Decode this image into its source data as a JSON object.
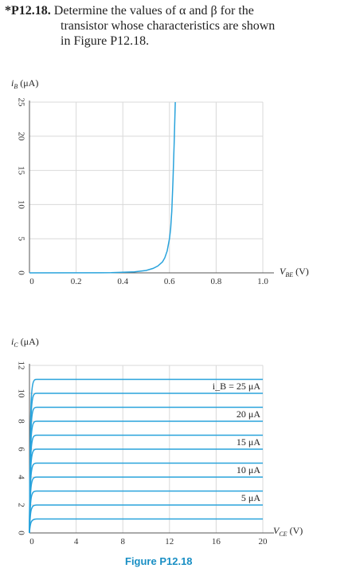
{
  "problem": {
    "number": "*P12.18.",
    "line1": "Determine the values of α and β for the",
    "line2": "transistor whose characteristics are shown",
    "line3": "in Figure P12.18."
  },
  "figure_caption": "Figure P12.18",
  "colors": {
    "curve": "#29a3dc",
    "grid": "#d9d9d9",
    "axis": "#555555",
    "caption": "#1a8fc4"
  },
  "chart_data": [
    {
      "type": "line",
      "title": "",
      "xlabel": "V_BE (V)",
      "ylabel": "i_B (μA)",
      "xlim": [
        0,
        1.0
      ],
      "ylim": [
        0,
        25
      ],
      "x_ticks": [
        "0",
        "0.2",
        "0.4",
        "0.6",
        "0.8",
        "1.0"
      ],
      "y_ticks": [
        "0",
        "5",
        "10",
        "15",
        "20",
        "25"
      ],
      "grid": true,
      "series": [
        {
          "x": [
            0.0,
            0.35,
            0.45,
            0.5,
            0.53,
            0.55,
            0.57,
            0.58,
            0.59,
            0.6,
            0.605,
            0.61,
            0.615,
            0.62,
            0.625
          ],
          "y": [
            0,
            0.02,
            0.15,
            0.35,
            0.65,
            1.0,
            1.6,
            2.2,
            3.2,
            5.0,
            6.5,
            9.0,
            13.5,
            19.0,
            25.0
          ]
        }
      ]
    },
    {
      "type": "line",
      "title": "",
      "xlabel": "V_CE (V)",
      "ylabel": "i_C (μA)",
      "xlim": [
        0,
        20
      ],
      "ylim": [
        0,
        12
      ],
      "x_ticks": [
        "0",
        "4",
        "8",
        "12",
        "16",
        "20"
      ],
      "y_ticks": [
        "0",
        "2",
        "4",
        "6",
        "8",
        "10",
        "12"
      ],
      "grid": true,
      "series": [
        {
          "name": "5 μA",
          "level": 2.0
        },
        {
          "name": "10 μA",
          "level": 4.0
        },
        {
          "name": "15 μA",
          "level": 6.0
        },
        {
          "name": "20 μA",
          "level": 8.0
        },
        {
          "name": "i_B = 25 μA",
          "level": 10.0
        }
      ],
      "extra_curves": [
        {
          "level": 1.0
        },
        {
          "level": 3.0
        },
        {
          "level": 5.0
        },
        {
          "level": 7.0
        },
        {
          "level": 9.0
        },
        {
          "level": 11.0
        }
      ]
    }
  ]
}
